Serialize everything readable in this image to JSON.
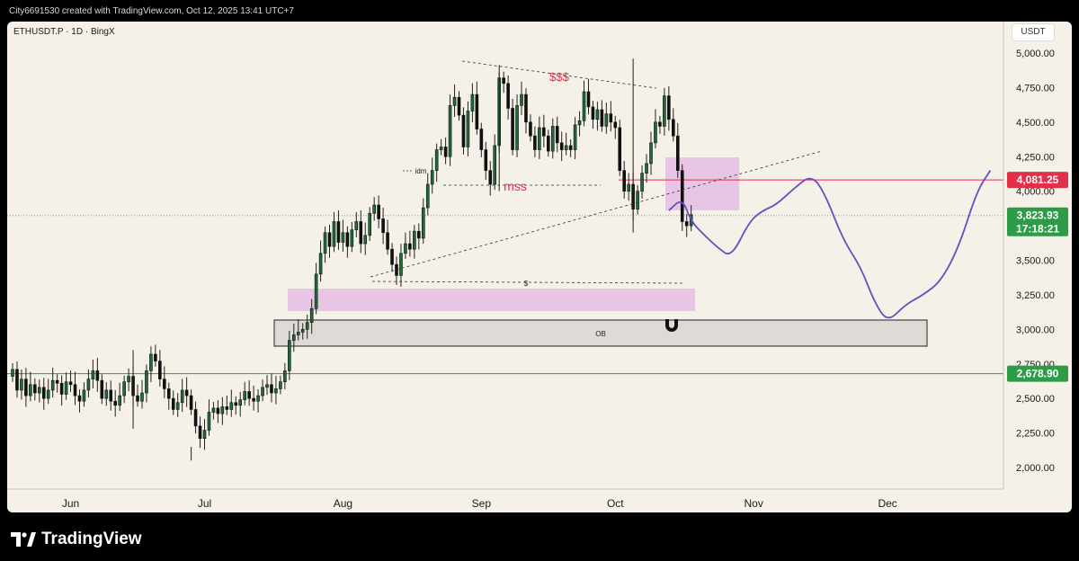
{
  "header": {
    "author_line": "City6691530 created with TradingView.com, Oct 12, 2025 13:41 UTC+7"
  },
  "symbol": {
    "label": "ETHUSDT.P · 1D · BingX"
  },
  "currency": "USDT",
  "footer": {
    "logo_text": "TradingView"
  },
  "colors": {
    "bull": "#1e6b3a",
    "bear": "#111111",
    "red_line": "#e0304a",
    "green_line": "#2e9b47",
    "projection": "#6b4bc0",
    "zone_pink": "#e3b7e3",
    "ob_fill": "#dedad6"
  },
  "chart_data": {
    "type": "candlestick",
    "symbol": "ETHUSDT.P",
    "interval": "1D",
    "exchange": "BingX",
    "y_axis": {
      "ticks": [
        "5,000.00",
        "4,750.00",
        "4,500.00",
        "4,250.00",
        "4,000.00",
        "3,750.00",
        "3,500.00",
        "3,250.00",
        "3,000.00",
        "2,750.00",
        "2,500.00",
        "2,250.00",
        "2,000.00"
      ],
      "ylim": [
        1950,
        5100
      ]
    },
    "x_axis": {
      "ticks": [
        "Jun",
        "Jul",
        "Aug",
        "Sep",
        "Oct",
        "Nov",
        "Dec"
      ]
    },
    "price_labels": {
      "resistance": "4,081.25",
      "current_price": "3,823.93",
      "countdown": "17:18:21",
      "support": "2,678.90"
    },
    "levels": {
      "resistance": 4081.25,
      "current": 3823.93,
      "support": 2678.9
    },
    "annotations": {
      "liquidity_top": "$$$",
      "mss": "mss",
      "idm": "idm",
      "liquidity_low": "$",
      "order_block": "OB"
    },
    "candles_start": "2025-05-19",
    "candles": [
      [
        2660,
        2710
      ],
      [
        2710,
        2560
      ],
      [
        2560,
        2640
      ],
      [
        2640,
        2520
      ],
      [
        2520,
        2600
      ],
      [
        2600,
        2540
      ],
      [
        2540,
        2580
      ],
      [
        2580,
        2500
      ],
      [
        2500,
        2560
      ],
      [
        2560,
        2630
      ],
      [
        2630,
        2610
      ],
      [
        2610,
        2530
      ],
      [
        2530,
        2620
      ],
      [
        2620,
        2600
      ],
      [
        2600,
        2520
      ],
      [
        2520,
        2480
      ],
      [
        2480,
        2560
      ],
      [
        2560,
        2640
      ],
      [
        2640,
        2700
      ],
      [
        2700,
        2630
      ],
      [
        2630,
        2500
      ],
      [
        2500,
        2560
      ],
      [
        2560,
        2480
      ],
      [
        2480,
        2450
      ],
      [
        2450,
        2520
      ],
      [
        2520,
        2620
      ],
      [
        2620,
        2660
      ],
      [
        2660,
        2520
      ],
      [
        2520,
        2480
      ],
      [
        2480,
        2540
      ],
      [
        2540,
        2700
      ],
      [
        2700,
        2820
      ],
      [
        2820,
        2770
      ],
      [
        2770,
        2640
      ],
      [
        2640,
        2570
      ],
      [
        2570,
        2500
      ],
      [
        2500,
        2420
      ],
      [
        2420,
        2470
      ],
      [
        2470,
        2560
      ],
      [
        2560,
        2520
      ],
      [
        2520,
        2420
      ],
      [
        2420,
        2300
      ],
      [
        2300,
        2210
      ],
      [
        2210,
        2270
      ],
      [
        2270,
        2400
      ],
      [
        2400,
        2430
      ],
      [
        2430,
        2390
      ],
      [
        2390,
        2440
      ],
      [
        2440,
        2420
      ],
      [
        2420,
        2470
      ],
      [
        2470,
        2450
      ],
      [
        2450,
        2490
      ],
      [
        2490,
        2550
      ],
      [
        2550,
        2500
      ],
      [
        2500,
        2480
      ],
      [
        2480,
        2520
      ],
      [
        2520,
        2580
      ],
      [
        2580,
        2600
      ],
      [
        2600,
        2540
      ],
      [
        2540,
        2570
      ],
      [
        2570,
        2620
      ],
      [
        2620,
        2700
      ],
      [
        2700,
        2920
      ],
      [
        2920,
        2960
      ],
      [
        2960,
        2980
      ],
      [
        2980,
        3000
      ],
      [
        3000,
        3050
      ],
      [
        3050,
        3150
      ],
      [
        3150,
        3400
      ],
      [
        3400,
        3550
      ],
      [
        3550,
        3700
      ],
      [
        3700,
        3600
      ],
      [
        3600,
        3780
      ],
      [
        3780,
        3630
      ],
      [
        3630,
        3700
      ],
      [
        3700,
        3600
      ],
      [
        3600,
        3720
      ],
      [
        3720,
        3780
      ],
      [
        3780,
        3620
      ],
      [
        3620,
        3680
      ],
      [
        3680,
        3840
      ],
      [
        3840,
        3900
      ],
      [
        3900,
        3800
      ],
      [
        3800,
        3700
      ],
      [
        3700,
        3580
      ],
      [
        3580,
        3470
      ],
      [
        3470,
        3390
      ],
      [
        3390,
        3550
      ],
      [
        3550,
        3620
      ],
      [
        3620,
        3580
      ],
      [
        3580,
        3710
      ],
      [
        3710,
        3660
      ],
      [
        3660,
        3880
      ],
      [
        3880,
        4050
      ],
      [
        4050,
        4150
      ],
      [
        4150,
        4300
      ],
      [
        4300,
        4320
      ],
      [
        4320,
        4250
      ],
      [
        4250,
        4620
      ],
      [
        4620,
        4680
      ],
      [
        4680,
        4550
      ],
      [
        4550,
        4320
      ],
      [
        4320,
        4580
      ],
      [
        4580,
        4700
      ],
      [
        4700,
        4450
      ],
      [
        4450,
        4300
      ],
      [
        4300,
        4150
      ],
      [
        4150,
        4050
      ],
      [
        4050,
        4330
      ],
      [
        4330,
        4820
      ],
      [
        4820,
        4780
      ],
      [
        4780,
        4600
      ],
      [
        4600,
        4300
      ],
      [
        4300,
        4620
      ],
      [
        4620,
        4700
      ],
      [
        4700,
        4500
      ],
      [
        4500,
        4400
      ],
      [
        4400,
        4300
      ],
      [
        4300,
        4460
      ],
      [
        4460,
        4400
      ],
      [
        4400,
        4290
      ],
      [
        4290,
        4470
      ],
      [
        4470,
        4350
      ],
      [
        4350,
        4300
      ],
      [
        4300,
        4330
      ],
      [
        4330,
        4300
      ],
      [
        4300,
        4480
      ],
      [
        4480,
        4510
      ],
      [
        4510,
        4720
      ],
      [
        4720,
        4610
      ],
      [
        4610,
        4520
      ],
      [
        4520,
        4590
      ],
      [
        4590,
        4470
      ],
      [
        4470,
        4560
      ],
      [
        4560,
        4500
      ],
      [
        4500,
        4460
      ],
      [
        4460,
        4150
      ],
      [
        4150,
        4000
      ],
      [
        4000,
        4050
      ],
      [
        4050,
        3870
      ],
      [
        3870,
        4000
      ],
      [
        4000,
        4130
      ],
      [
        4130,
        4200
      ],
      [
        4200,
        4350
      ],
      [
        4350,
        4500
      ],
      [
        4500,
        4470
      ],
      [
        4470,
        4690
      ],
      [
        4690,
        4520
      ],
      [
        4520,
        4400
      ],
      [
        4400,
        4150
      ],
      [
        4150,
        3780
      ],
      [
        3780,
        3750
      ],
      [
        3750,
        3830
      ]
    ],
    "wicks": {
      "high_low": [
        [
          4960,
          3700,
          139
        ],
        [
          4860,
          4000,
          109
        ],
        [
          2850,
          2280,
          27
        ],
        [
          2150,
          2050,
          40
        ]
      ]
    },
    "projection_path": [
      [
        "2025-10-13",
        3860
      ],
      [
        "2025-10-16",
        3950
      ],
      [
        "2025-10-18",
        3780
      ],
      [
        "2025-10-21",
        3680
      ],
      [
        "2025-10-24",
        3590
      ],
      [
        "2025-10-27",
        3520
      ],
      [
        "2025-10-31",
        3780
      ],
      [
        "2025-11-03",
        3860
      ],
      [
        "2025-11-06",
        3900
      ],
      [
        "2025-11-10",
        4020
      ],
      [
        "2025-11-14",
        4120
      ],
      [
        "2025-11-17",
        3980
      ],
      [
        "2025-11-21",
        3650
      ],
      [
        "2025-11-25",
        3450
      ],
      [
        "2025-11-28",
        3200
      ],
      [
        "2025-12-01",
        3050
      ],
      [
        "2025-12-05",
        3180
      ],
      [
        "2025-12-09",
        3250
      ],
      [
        "2025-12-13",
        3350
      ],
      [
        "2025-12-17",
        3600
      ],
      [
        "2025-12-21",
        4000
      ],
      [
        "2025-12-24",
        4150
      ]
    ],
    "grid": false
  }
}
